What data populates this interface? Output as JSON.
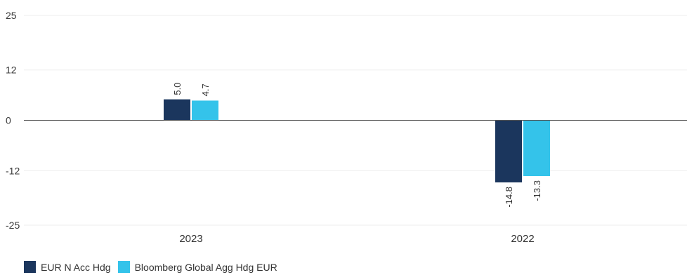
{
  "chart_data": {
    "type": "bar",
    "categories": [
      "2023",
      "2022"
    ],
    "series": [
      {
        "name": "EUR N Acc Hdg",
        "values": [
          5.0,
          -14.8
        ],
        "labels": [
          "5.0",
          "-14.8"
        ],
        "color": "#1b365d"
      },
      {
        "name": "Bloomberg Global Agg Hdg EUR",
        "values": [
          4.7,
          -13.3
        ],
        "labels": [
          "4.7",
          "-13.3"
        ],
        "color": "#34c3ea"
      }
    ],
    "yticks": [
      25,
      12,
      0,
      -12,
      -25
    ],
    "ytick_labels": [
      "25",
      "12",
      "0",
      "-12",
      "-25"
    ],
    "ylim": [
      -25,
      25
    ],
    "grid": true,
    "legend_position": "bottom-left",
    "title": "",
    "xlabel": "",
    "ylabel": ""
  }
}
